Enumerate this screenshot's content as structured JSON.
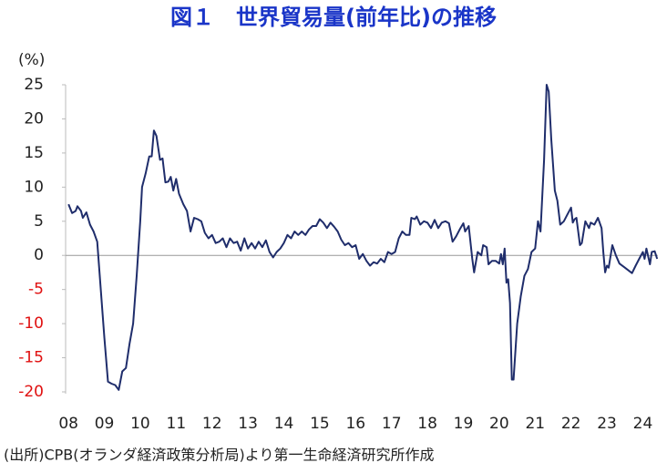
{
  "chart_data": {
    "type": "line",
    "title": "図１　世界貿易量(前年比)の推移",
    "y_unit_label": "(%)",
    "source": "(出所)CPB(オランダ経済政策分析局)より第一生命経済研究所作成",
    "xlim": [
      2007.92,
      2024.42
    ],
    "ylim": [
      -20,
      25
    ],
    "yticks": [
      25,
      20,
      15,
      10,
      5,
      0,
      -5,
      -10,
      -15,
      -20
    ],
    "negative_tick_color": "#e01010",
    "xticks": [
      {
        "value": 2008,
        "label": "08"
      },
      {
        "value": 2009,
        "label": "09"
      },
      {
        "value": 2010,
        "label": "10"
      },
      {
        "value": 2011,
        "label": "11"
      },
      {
        "value": 2012,
        "label": "12"
      },
      {
        "value": 2013,
        "label": "13"
      },
      {
        "value": 2014,
        "label": "14"
      },
      {
        "value": 2015,
        "label": "15"
      },
      {
        "value": 2016,
        "label": "16"
      },
      {
        "value": 2017,
        "label": "17"
      },
      {
        "value": 2018,
        "label": "18"
      },
      {
        "value": 2019,
        "label": "19"
      },
      {
        "value": 2020,
        "label": "20"
      },
      {
        "value": 2021,
        "label": "21"
      },
      {
        "value": 2022,
        "label": "22"
      },
      {
        "value": 2023,
        "label": "23"
      },
      {
        "value": 2024,
        "label": "24"
      }
    ],
    "grid": false,
    "zero_line": true,
    "series": [
      {
        "color": "#1f2d6b",
        "x": [
          2008.0,
          2008.1,
          2008.2,
          2008.25,
          2008.35,
          2008.4,
          2008.5,
          2008.6,
          2008.7,
          2008.8,
          2008.9,
          2009.0,
          2009.1,
          2009.2,
          2009.3,
          2009.4,
          2009.5,
          2009.6,
          2009.7,
          2009.8,
          2009.9,
          2010.0,
          2010.05,
          2010.15,
          2010.25,
          2010.32,
          2010.38,
          2010.45,
          2010.55,
          2010.62,
          2010.7,
          2010.78,
          2010.85,
          2010.92,
          2011.0,
          2011.08,
          2011.2,
          2011.3,
          2011.4,
          2011.5,
          2011.6,
          2011.7,
          2011.8,
          2011.9,
          2012.0,
          2012.1,
          2012.2,
          2012.3,
          2012.4,
          2012.5,
          2012.6,
          2012.7,
          2012.8,
          2012.9,
          2013.0,
          2013.1,
          2013.2,
          2013.3,
          2013.4,
          2013.5,
          2013.6,
          2013.7,
          2013.8,
          2013.9,
          2014.0,
          2014.1,
          2014.2,
          2014.3,
          2014.4,
          2014.5,
          2014.6,
          2014.7,
          2014.8,
          2014.9,
          2015.0,
          2015.1,
          2015.2,
          2015.3,
          2015.4,
          2015.5,
          2015.6,
          2015.7,
          2015.8,
          2015.9,
          2016.0,
          2016.1,
          2016.2,
          2016.3,
          2016.4,
          2016.5,
          2016.6,
          2016.7,
          2016.8,
          2016.9,
          2017.0,
          2017.1,
          2017.2,
          2017.3,
          2017.4,
          2017.5,
          2017.55,
          2017.65,
          2017.7,
          2017.8,
          2017.9,
          2018.0,
          2018.1,
          2018.2,
          2018.3,
          2018.4,
          2018.5,
          2018.6,
          2018.7,
          2018.8,
          2018.9,
          2019.0,
          2019.05,
          2019.15,
          2019.25,
          2019.3,
          2019.4,
          2019.5,
          2019.55,
          2019.65,
          2019.7,
          2019.8,
          2019.9,
          2020.0,
          2020.05,
          2020.1,
          2020.15,
          2020.2,
          2020.25,
          2020.3,
          2020.35,
          2020.4,
          2020.5,
          2020.6,
          2020.7,
          2020.8,
          2020.9,
          2021.0,
          2021.08,
          2021.15,
          2021.25,
          2021.32,
          2021.38,
          2021.45,
          2021.55,
          2021.62,
          2021.7,
          2021.8,
          2021.9,
          2022.0,
          2022.05,
          2022.1,
          2022.15,
          2022.25,
          2022.3,
          2022.4,
          2022.5,
          2022.55,
          2022.65,
          2022.75,
          2022.85,
          2022.9,
          2022.95,
          2023.0,
          2023.05,
          2023.15,
          2023.25,
          2023.35,
          2023.5,
          2023.7,
          2023.8,
          2023.9,
          2024.0,
          2024.05,
          2024.1,
          2024.2,
          2024.25,
          2024.33,
          2024.4
        ],
        "values": [
          7.5,
          6.2,
          6.5,
          7.2,
          6.5,
          5.5,
          6.3,
          4.5,
          3.5,
          2,
          -5,
          -12,
          -18.5,
          -18.8,
          -19,
          -19.7,
          -17,
          -16.5,
          -13,
          -10,
          -3,
          5,
          10,
          12,
          14.5,
          14.5,
          18.3,
          17.5,
          14,
          14.2,
          10.7,
          10.8,
          11.5,
          9.5,
          11.2,
          9,
          7.5,
          6.5,
          3.5,
          5.5,
          5.3,
          5,
          3.3,
          2.5,
          3,
          1.8,
          2,
          2.5,
          1.2,
          2.5,
          1.8,
          2,
          0.7,
          2.5,
          1,
          1.8,
          1,
          2,
          1.2,
          2.2,
          0.5,
          -0.3,
          0.5,
          1,
          1.8,
          3,
          2.5,
          3.5,
          3,
          3.5,
          3,
          3.8,
          4.3,
          4.3,
          5.3,
          4.8,
          4,
          4.8,
          4.2,
          3.5,
          2.3,
          1.5,
          1.8,
          1.2,
          1.5,
          -0.5,
          0.2,
          -0.8,
          -1.5,
          -1,
          -1.2,
          -0.5,
          -1,
          0.5,
          0.2,
          0.5,
          2.5,
          3.5,
          3,
          3,
          5.5,
          5.3,
          5.7,
          4.5,
          5,
          4.8,
          4,
          5.2,
          4,
          4.8,
          5,
          4.7,
          2,
          2.8,
          3.8,
          4.7,
          3.5,
          4.3,
          -0.5,
          -2.5,
          0.5,
          0,
          1.5,
          1.2,
          -1.3,
          -0.8,
          -0.8,
          -1.2,
          0.2,
          -1.3,
          1,
          -4,
          -3.5,
          -7,
          -18.2,
          -18.2,
          -10,
          -6,
          -3,
          -2,
          0.5,
          1,
          5,
          3.5,
          14,
          25,
          24,
          17,
          9.5,
          8,
          4.5,
          5,
          6,
          7,
          4.8,
          5.3,
          5.5,
          1.5,
          1.8,
          5,
          4,
          4.8,
          4.5,
          5.5,
          4,
          0.5,
          -2.5,
          -1.5,
          -1.8,
          1.5,
          0,
          -1.2,
          -1.8,
          -2.6,
          -1.5,
          -0.5,
          0.5,
          -0.5,
          1,
          -1.3,
          0.5,
          0.6,
          -0.5
        ]
      }
    ]
  }
}
